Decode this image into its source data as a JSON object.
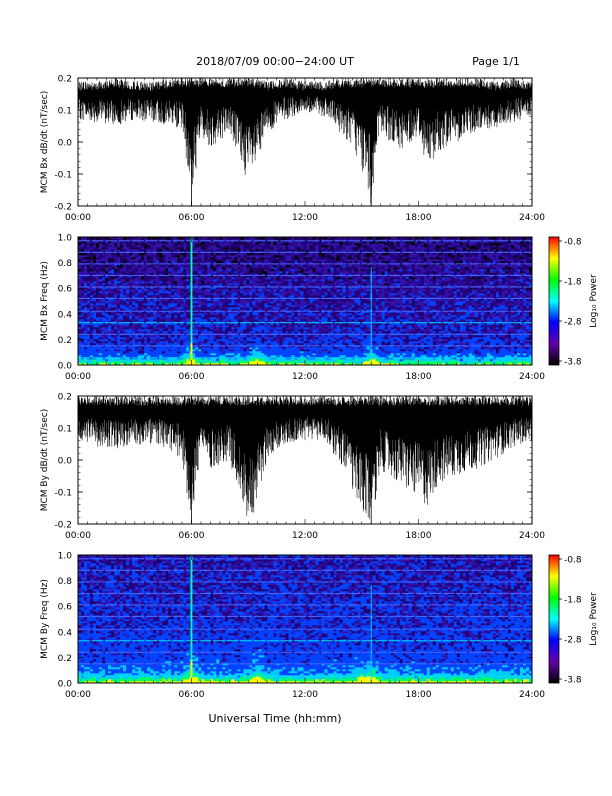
{
  "header": {
    "date_range": "2018/07/09  00:00−24:00 UT",
    "page": "Page 1/1"
  },
  "footer": {
    "xaxis_title": "Universal Time (hh:mm)"
  },
  "colorbar": {
    "label": "Log₁₀ Power",
    "ticks": [
      "-0.8",
      "-1.8",
      "-2.8",
      "-3.8"
    ],
    "colors": [
      "#ff0000",
      "#ffff00",
      "#00ff00",
      "#00ffff",
      "#0000ff",
      "#6600aa",
      "#000000"
    ]
  },
  "chart_data": [
    {
      "type": "line",
      "ylabel": "MCM Bx dB/dt (nT/sec)",
      "xlim": [
        "00:00",
        "24:00"
      ],
      "xticks": [
        "00:00",
        "06:00",
        "12:00",
        "18:00",
        "24:00"
      ],
      "ylim": [
        -0.2,
        0.2
      ],
      "yticks": [
        "-0.2",
        "-0.1",
        "0.0",
        "0.1",
        "0.2"
      ],
      "x_hours": [
        0,
        1,
        2,
        3,
        4,
        5,
        5.5,
        6,
        6.5,
        7,
        8,
        9,
        9.5,
        10,
        11,
        12,
        13,
        14,
        14.5,
        15,
        15.5,
        16,
        17,
        18,
        18.5,
        19,
        20,
        21,
        22,
        23,
        24
      ],
      "upper": [
        0.19,
        0.19,
        0.2,
        0.19,
        0.19,
        0.2,
        0.2,
        0.2,
        0.2,
        0.2,
        0.2,
        0.2,
        0.2,
        0.19,
        0.2,
        0.19,
        0.19,
        0.2,
        0.2,
        0.2,
        0.2,
        0.2,
        0.2,
        0.2,
        0.2,
        0.2,
        0.2,
        0.2,
        0.19,
        0.2,
        0.19
      ],
      "lower": [
        0.07,
        0.06,
        0.05,
        0.07,
        0.06,
        0.05,
        0.04,
        -0.18,
        0.02,
        -0.02,
        0.03,
        -0.13,
        -0.08,
        0.03,
        0.07,
        0.09,
        0.08,
        0.02,
        -0.01,
        -0.09,
        -0.2,
        0.03,
        -0.03,
        0.02,
        -0.09,
        -0.03,
        0.0,
        0.03,
        0.04,
        0.06,
        0.08
      ]
    },
    {
      "type": "heatmap",
      "ylabel": "MCM Bx Freq (Hz)",
      "xlim": [
        "00:00",
        "24:00"
      ],
      "xticks": [
        "00:00",
        "06:00",
        "12:00",
        "18:00",
        "24:00"
      ],
      "ylim": [
        0.0,
        1.0
      ],
      "yticks": [
        "0.0",
        "0.2",
        "0.4",
        "0.6",
        "0.8",
        "1.0"
      ],
      "zlim": [
        -3.8,
        -0.8
      ],
      "harmonic_lines_hz": [
        0.055,
        0.15,
        0.24,
        0.33,
        0.42,
        0.52,
        0.61,
        0.7,
        0.79,
        0.88,
        0.97
      ],
      "bright_times_h": [
        6.0,
        9.5,
        15.5
      ]
    },
    {
      "type": "line",
      "ylabel": "MCM By dB/dt (nT/sec)",
      "xlim": [
        "00:00",
        "24:00"
      ],
      "xticks": [
        "00:00",
        "06:00",
        "12:00",
        "18:00",
        "24:00"
      ],
      "ylim": [
        -0.2,
        0.2
      ],
      "yticks": [
        "-0.2",
        "-0.1",
        "0.0",
        "0.1",
        "0.2"
      ],
      "x_hours": [
        0,
        1,
        2,
        3,
        4,
        5,
        5.5,
        6,
        6.5,
        7,
        8,
        9,
        9.5,
        10,
        11,
        12,
        13,
        14,
        14.5,
        15,
        15.5,
        16,
        17,
        18,
        18.5,
        19,
        20,
        21,
        22,
        23,
        24
      ],
      "upper": [
        0.2,
        0.2,
        0.2,
        0.2,
        0.2,
        0.2,
        0.2,
        0.2,
        0.2,
        0.2,
        0.2,
        0.2,
        0.2,
        0.2,
        0.2,
        0.2,
        0.2,
        0.2,
        0.2,
        0.2,
        0.2,
        0.2,
        0.2,
        0.2,
        0.2,
        0.2,
        0.2,
        0.2,
        0.2,
        0.2,
        0.2
      ],
      "lower": [
        0.06,
        0.04,
        0.03,
        0.04,
        0.05,
        0.02,
        0.0,
        -0.2,
        0.03,
        -0.03,
        0.0,
        -0.2,
        -0.14,
        0.0,
        0.05,
        0.06,
        0.06,
        -0.02,
        -0.1,
        -0.2,
        -0.2,
        -0.03,
        -0.08,
        -0.12,
        -0.15,
        -0.08,
        -0.05,
        -0.03,
        0.0,
        0.04,
        0.06
      ]
    },
    {
      "type": "heatmap",
      "ylabel": "MCM By Freq (Hz)",
      "xlim": [
        "00:00",
        "24:00"
      ],
      "xticks": [
        "00:00",
        "06:00",
        "12:00",
        "18:00",
        "24:00"
      ],
      "ylim": [
        0.0,
        1.0
      ],
      "yticks": [
        "0.0",
        "0.2",
        "0.4",
        "0.6",
        "0.8",
        "1.0"
      ],
      "zlim": [
        -3.8,
        -0.8
      ],
      "harmonic_lines_hz": [
        0.055,
        0.15,
        0.24,
        0.33,
        0.42,
        0.52,
        0.61,
        0.7,
        0.79,
        0.88,
        0.97
      ],
      "bright_times_h": [
        6.0,
        9.5,
        15.0,
        15.5
      ]
    }
  ]
}
